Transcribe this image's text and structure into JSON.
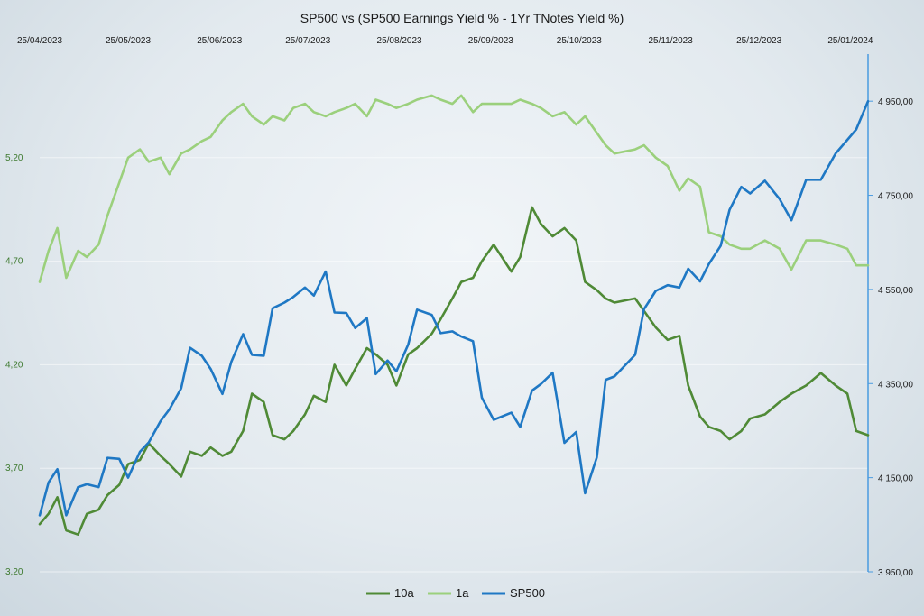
{
  "chart_data": {
    "type": "line",
    "title": "SP500 vs (SP500 Earnings Yield % - 1Yr TNotes Yield %)",
    "x_ticks": [
      "25/04/2023",
      "25/05/2023",
      "25/06/2023",
      "25/07/2023",
      "25/08/2023",
      "25/09/2023",
      "25/10/2023",
      "25/11/2023",
      "25/12/2023",
      "25/01/2024"
    ],
    "x_range": [
      "2023-04-25",
      "2024-01-31"
    ],
    "y_left": {
      "ticks": [
        "3,20",
        "3,70",
        "4,20",
        "4,70",
        "5,20"
      ],
      "range": [
        3.2,
        5.7
      ]
    },
    "y_right": {
      "ticks": [
        "3 950,00",
        "4 150,00",
        "4 350,00",
        "4 550,00",
        "4 750,00",
        "4 950,00"
      ],
      "range": [
        3950,
        5050
      ]
    },
    "legend": [
      "10a",
      "1a",
      "SP500"
    ],
    "legend_position": "bottom",
    "colors": {
      "10a": "#4f8a36",
      "1a": "#9bd07c",
      "SP500": "#1f78c4"
    },
    "series": [
      {
        "name": "10a",
        "axis": "left",
        "color": "#4f8a36",
        "points": [
          [
            "2023-04-25",
            3.43
          ],
          [
            "2023-04-28",
            3.48
          ],
          [
            "2023-05-01",
            3.56
          ],
          [
            "2023-05-04",
            3.4
          ],
          [
            "2023-05-08",
            3.38
          ],
          [
            "2023-05-11",
            3.48
          ],
          [
            "2023-05-15",
            3.5
          ],
          [
            "2023-05-18",
            3.57
          ],
          [
            "2023-05-22",
            3.62
          ],
          [
            "2023-05-25",
            3.72
          ],
          [
            "2023-05-29",
            3.74
          ],
          [
            "2023-06-01",
            3.82
          ],
          [
            "2023-06-05",
            3.76
          ],
          [
            "2023-06-08",
            3.72
          ],
          [
            "2023-06-12",
            3.66
          ],
          [
            "2023-06-15",
            3.78
          ],
          [
            "2023-06-19",
            3.76
          ],
          [
            "2023-06-22",
            3.8
          ],
          [
            "2023-06-26",
            3.76
          ],
          [
            "2023-06-29",
            3.78
          ],
          [
            "2023-07-03",
            3.88
          ],
          [
            "2023-07-06",
            4.06
          ],
          [
            "2023-07-10",
            4.02
          ],
          [
            "2023-07-13",
            3.86
          ],
          [
            "2023-07-17",
            3.84
          ],
          [
            "2023-07-20",
            3.88
          ],
          [
            "2023-07-24",
            3.96
          ],
          [
            "2023-07-27",
            4.05
          ],
          [
            "2023-07-31",
            4.02
          ],
          [
            "2023-08-03",
            4.2
          ],
          [
            "2023-08-07",
            4.1
          ],
          [
            "2023-08-10",
            4.18
          ],
          [
            "2023-08-14",
            4.28
          ],
          [
            "2023-08-17",
            4.25
          ],
          [
            "2023-08-21",
            4.2
          ],
          [
            "2023-08-24",
            4.1
          ],
          [
            "2023-08-28",
            4.25
          ],
          [
            "2023-08-31",
            4.28
          ],
          [
            "2023-09-05",
            4.35
          ],
          [
            "2023-09-08",
            4.42
          ],
          [
            "2023-09-12",
            4.52
          ],
          [
            "2023-09-15",
            4.6
          ],
          [
            "2023-09-19",
            4.62
          ],
          [
            "2023-09-22",
            4.7
          ],
          [
            "2023-09-26",
            4.78
          ],
          [
            "2023-10-02",
            4.65
          ],
          [
            "2023-10-05",
            4.72
          ],
          [
            "2023-10-09",
            4.96
          ],
          [
            "2023-10-12",
            4.88
          ],
          [
            "2023-10-16",
            4.82
          ],
          [
            "2023-10-20",
            4.86
          ],
          [
            "2023-10-24",
            4.8
          ],
          [
            "2023-10-27",
            4.6
          ],
          [
            "2023-10-31",
            4.56
          ],
          [
            "2023-11-03",
            4.52
          ],
          [
            "2023-11-06",
            4.5
          ],
          [
            "2023-11-13",
            4.52
          ],
          [
            "2023-11-16",
            4.46
          ],
          [
            "2023-11-20",
            4.38
          ],
          [
            "2023-11-24",
            4.32
          ],
          [
            "2023-11-28",
            4.34
          ],
          [
            "2023-12-01",
            4.1
          ],
          [
            "2023-12-05",
            3.95
          ],
          [
            "2023-12-08",
            3.9
          ],
          [
            "2023-12-12",
            3.88
          ],
          [
            "2023-12-15",
            3.84
          ],
          [
            "2023-12-19",
            3.88
          ],
          [
            "2023-12-22",
            3.94
          ],
          [
            "2023-12-27",
            3.96
          ],
          [
            "2024-01-01",
            4.02
          ],
          [
            "2024-01-05",
            4.06
          ],
          [
            "2024-01-10",
            4.1
          ],
          [
            "2024-01-15",
            4.16
          ],
          [
            "2024-01-20",
            4.1
          ],
          [
            "2024-01-24",
            4.06
          ],
          [
            "2024-01-27",
            3.88
          ],
          [
            "2024-01-31",
            3.86
          ]
        ]
      },
      {
        "name": "1a",
        "axis": "left",
        "color": "#9bd07c",
        "points": [
          [
            "2023-04-25",
            4.6
          ],
          [
            "2023-04-28",
            4.75
          ],
          [
            "2023-05-01",
            4.86
          ],
          [
            "2023-05-04",
            4.62
          ],
          [
            "2023-05-08",
            4.75
          ],
          [
            "2023-05-11",
            4.72
          ],
          [
            "2023-05-15",
            4.78
          ],
          [
            "2023-05-18",
            4.92
          ],
          [
            "2023-05-22",
            5.08
          ],
          [
            "2023-05-25",
            5.2
          ],
          [
            "2023-05-29",
            5.24
          ],
          [
            "2023-06-01",
            5.18
          ],
          [
            "2023-06-05",
            5.2
          ],
          [
            "2023-06-08",
            5.12
          ],
          [
            "2023-06-12",
            5.22
          ],
          [
            "2023-06-15",
            5.24
          ],
          [
            "2023-06-19",
            5.28
          ],
          [
            "2023-06-22",
            5.3
          ],
          [
            "2023-06-26",
            5.38
          ],
          [
            "2023-06-29",
            5.42
          ],
          [
            "2023-07-03",
            5.46
          ],
          [
            "2023-07-06",
            5.4
          ],
          [
            "2023-07-10",
            5.36
          ],
          [
            "2023-07-13",
            5.4
          ],
          [
            "2023-07-17",
            5.38
          ],
          [
            "2023-07-20",
            5.44
          ],
          [
            "2023-07-24",
            5.46
          ],
          [
            "2023-07-27",
            5.42
          ],
          [
            "2023-07-31",
            5.4
          ],
          [
            "2023-08-03",
            5.42
          ],
          [
            "2023-08-07",
            5.44
          ],
          [
            "2023-08-10",
            5.46
          ],
          [
            "2023-08-14",
            5.4
          ],
          [
            "2023-08-17",
            5.48
          ],
          [
            "2023-08-21",
            5.46
          ],
          [
            "2023-08-24",
            5.44
          ],
          [
            "2023-08-28",
            5.46
          ],
          [
            "2023-08-31",
            5.48
          ],
          [
            "2023-09-05",
            5.5
          ],
          [
            "2023-09-08",
            5.48
          ],
          [
            "2023-09-12",
            5.46
          ],
          [
            "2023-09-15",
            5.5
          ],
          [
            "2023-09-19",
            5.42
          ],
          [
            "2023-09-22",
            5.46
          ],
          [
            "2023-10-02",
            5.46
          ],
          [
            "2023-10-05",
            5.48
          ],
          [
            "2023-10-09",
            5.46
          ],
          [
            "2023-10-12",
            5.44
          ],
          [
            "2023-10-16",
            5.4
          ],
          [
            "2023-10-20",
            5.42
          ],
          [
            "2023-10-24",
            5.36
          ],
          [
            "2023-10-27",
            5.4
          ],
          [
            "2023-10-31",
            5.32
          ],
          [
            "2023-11-03",
            5.26
          ],
          [
            "2023-11-06",
            5.22
          ],
          [
            "2023-11-13",
            5.24
          ],
          [
            "2023-11-16",
            5.26
          ],
          [
            "2023-11-20",
            5.2
          ],
          [
            "2023-11-24",
            5.16
          ],
          [
            "2023-11-28",
            5.04
          ],
          [
            "2023-12-01",
            5.1
          ],
          [
            "2023-12-05",
            5.06
          ],
          [
            "2023-12-08",
            4.84
          ],
          [
            "2023-12-12",
            4.82
          ],
          [
            "2023-12-15",
            4.78
          ],
          [
            "2023-12-19",
            4.76
          ],
          [
            "2023-12-22",
            4.76
          ],
          [
            "2023-12-27",
            4.8
          ],
          [
            "2024-01-01",
            4.76
          ],
          [
            "2024-01-05",
            4.66
          ],
          [
            "2024-01-10",
            4.8
          ],
          [
            "2024-01-15",
            4.8
          ],
          [
            "2024-01-20",
            4.78
          ],
          [
            "2024-01-24",
            4.76
          ],
          [
            "2024-01-27",
            4.68
          ],
          [
            "2024-01-31",
            4.68
          ]
        ]
      },
      {
        "name": "SP500",
        "axis": "right",
        "color": "#1f78c4",
        "points": [
          [
            "2023-04-25",
            4070
          ],
          [
            "2023-04-28",
            4140
          ],
          [
            "2023-05-01",
            4168
          ],
          [
            "2023-05-04",
            4070
          ],
          [
            "2023-05-08",
            4130
          ],
          [
            "2023-05-11",
            4136
          ],
          [
            "2023-05-15",
            4130
          ],
          [
            "2023-05-18",
            4192
          ],
          [
            "2023-05-22",
            4190
          ],
          [
            "2023-05-25",
            4150
          ],
          [
            "2023-05-29",
            4205
          ],
          [
            "2023-06-01",
            4225
          ],
          [
            "2023-06-05",
            4270
          ],
          [
            "2023-06-08",
            4295
          ],
          [
            "2023-06-12",
            4340
          ],
          [
            "2023-06-15",
            4426
          ],
          [
            "2023-06-19",
            4409
          ],
          [
            "2023-06-22",
            4381
          ],
          [
            "2023-06-26",
            4328
          ],
          [
            "2023-06-29",
            4396
          ],
          [
            "2023-07-03",
            4455
          ],
          [
            "2023-07-06",
            4411
          ],
          [
            "2023-07-10",
            4409
          ],
          [
            "2023-07-13",
            4510
          ],
          [
            "2023-07-17",
            4522
          ],
          [
            "2023-07-20",
            4534
          ],
          [
            "2023-07-24",
            4554
          ],
          [
            "2023-07-27",
            4537
          ],
          [
            "2023-07-31",
            4588
          ],
          [
            "2023-08-03",
            4501
          ],
          [
            "2023-08-07",
            4500
          ],
          [
            "2023-08-10",
            4468
          ],
          [
            "2023-08-14",
            4489
          ],
          [
            "2023-08-17",
            4370
          ],
          [
            "2023-08-21",
            4399
          ],
          [
            "2023-08-24",
            4376
          ],
          [
            "2023-08-28",
            4433
          ],
          [
            "2023-08-31",
            4507
          ],
          [
            "2023-09-05",
            4496
          ],
          [
            "2023-09-08",
            4457
          ],
          [
            "2023-09-12",
            4461
          ],
          [
            "2023-09-15",
            4450
          ],
          [
            "2023-09-19",
            4440
          ],
          [
            "2023-09-22",
            4320
          ],
          [
            "2023-09-26",
            4273
          ],
          [
            "2023-10-02",
            4288
          ],
          [
            "2023-10-05",
            4258
          ],
          [
            "2023-10-09",
            4335
          ],
          [
            "2023-10-12",
            4349
          ],
          [
            "2023-10-16",
            4373
          ],
          [
            "2023-10-20",
            4224
          ],
          [
            "2023-10-24",
            4247
          ],
          [
            "2023-10-27",
            4117
          ],
          [
            "2023-10-31",
            4193
          ],
          [
            "2023-11-03",
            4358
          ],
          [
            "2023-11-06",
            4365
          ],
          [
            "2023-11-13",
            4411
          ],
          [
            "2023-11-16",
            4508
          ],
          [
            "2023-11-20",
            4547
          ],
          [
            "2023-11-24",
            4559
          ],
          [
            "2023-11-28",
            4554
          ],
          [
            "2023-12-01",
            4594
          ],
          [
            "2023-12-05",
            4567
          ],
          [
            "2023-12-08",
            4604
          ],
          [
            "2023-12-12",
            4643
          ],
          [
            "2023-12-15",
            4719
          ],
          [
            "2023-12-19",
            4768
          ],
          [
            "2023-12-22",
            4754
          ],
          [
            "2023-12-27",
            4781
          ],
          [
            "2024-01-01",
            4742
          ],
          [
            "2024-01-05",
            4697
          ],
          [
            "2024-01-10",
            4783
          ],
          [
            "2024-01-15",
            4783
          ],
          [
            "2024-01-20",
            4839
          ],
          [
            "2024-01-24",
            4868
          ],
          [
            "2024-01-27",
            4890
          ],
          [
            "2024-01-31",
            4950
          ]
        ]
      }
    ]
  }
}
